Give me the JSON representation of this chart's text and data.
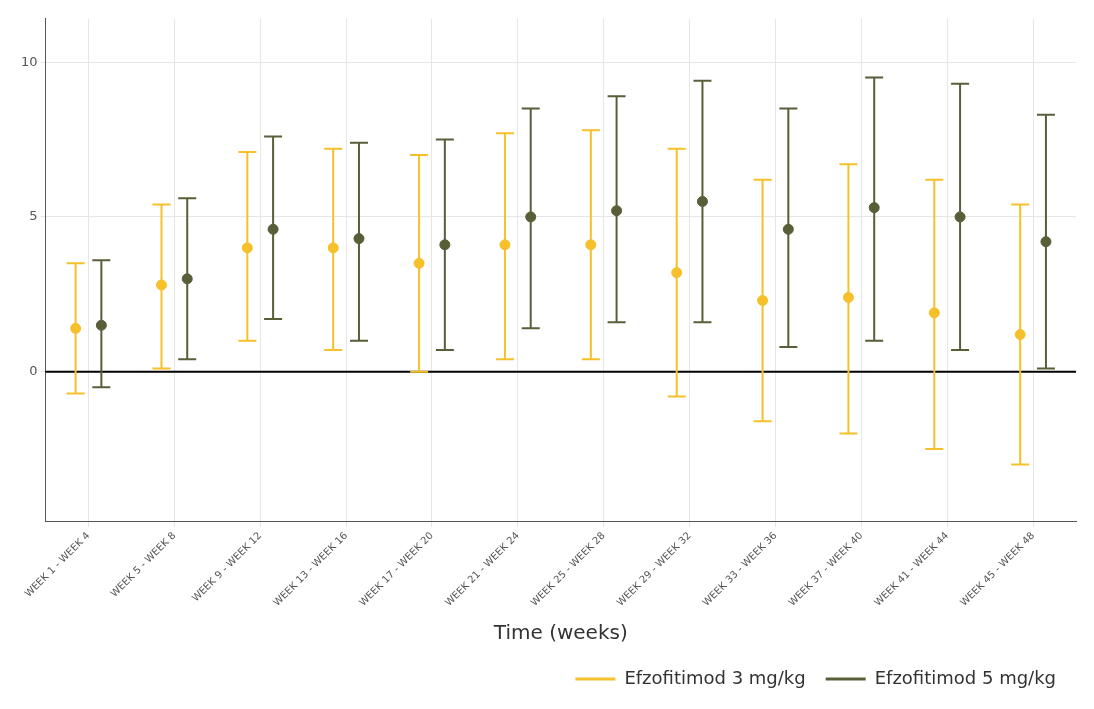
{
  "chart_data": {
    "type": "scatter",
    "xlabel": "Time (weeks)",
    "categories": [
      "WEEK 1 - WEEK 4",
      "WEEK 5 - WEEK 8",
      "WEEK 9 - WEEK 12",
      "WEEK 13 - WEEK 16",
      "WEEK 17 - WEEK 20",
      "WEEK 21 - WEEK 24",
      "WEEK 25 - WEEK 28",
      "WEEK 29 - WEEK 32",
      "WEEK 33 - WEEK 36",
      "WEEK 37 - WEEK 40",
      "WEEK 41 - WEEK 44",
      "WEEK 45 - WEEK 48"
    ],
    "series": [
      {
        "name": "Efzofitimod 3 mg/kg",
        "color": "#f5c02a",
        "values": [
          1.4,
          2.8,
          4.0,
          4.0,
          3.5,
          4.1,
          4.1,
          3.2,
          2.3,
          2.4,
          1.9,
          1.2
        ],
        "errors": [
          [
            -0.7,
            3.5
          ],
          [
            0.1,
            5.4
          ],
          [
            1.0,
            7.1
          ],
          [
            0.7,
            7.2
          ],
          [
            0.0,
            7.0
          ],
          [
            0.4,
            7.7
          ],
          [
            0.4,
            7.8
          ],
          [
            -0.8,
            7.2
          ],
          [
            -1.6,
            6.2
          ],
          [
            -2.0,
            6.7
          ],
          [
            -2.5,
            6.2
          ],
          [
            -3.0,
            5.4
          ]
        ]
      },
      {
        "name": "Efzofitimod 5 mg/kg",
        "color": "#5a5e38",
        "values": [
          1.5,
          3.0,
          4.6,
          4.3,
          4.1,
          5.0,
          5.2,
          5.5,
          4.6,
          5.3,
          5.0,
          4.2
        ],
        "errors": [
          [
            -0.5,
            3.6
          ],
          [
            0.4,
            5.6
          ],
          [
            1.7,
            7.6
          ],
          [
            1.0,
            7.4
          ],
          [
            0.7,
            7.5
          ],
          [
            1.4,
            8.5
          ],
          [
            1.6,
            8.9
          ],
          [
            1.6,
            9.4
          ],
          [
            0.8,
            8.5
          ],
          [
            1.0,
            9.5
          ],
          [
            0.7,
            9.3
          ],
          [
            0.1,
            8.3
          ]
        ]
      }
    ],
    "ylim": [
      -4.85,
      11.4
    ],
    "yticks": [
      0,
      5,
      10
    ],
    "grid": true,
    "legend": "bottom right",
    "marker": "circle",
    "ref_lines": [
      {
        "axis": "y",
        "value": 0,
        "color": "#000000"
      }
    ]
  }
}
